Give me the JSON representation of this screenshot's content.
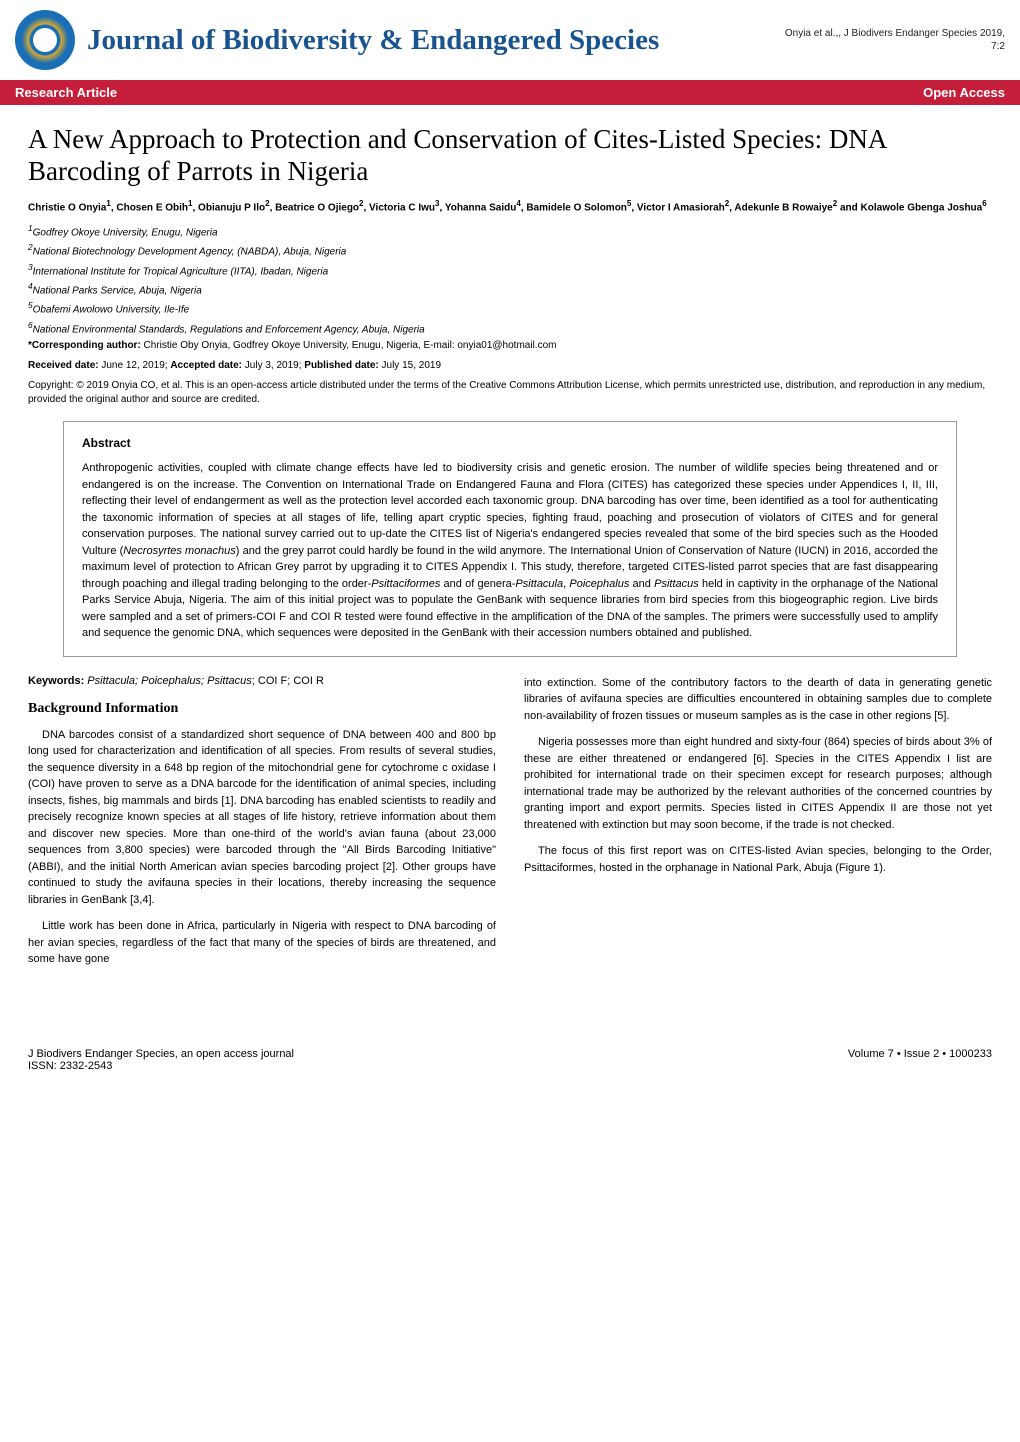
{
  "header": {
    "journal_title": "Journal of Biodiversity & Endangered Species",
    "citation_line1": "Onyia et al.,, J Biodivers Endanger Species 2019,",
    "citation_line2": "7:2"
  },
  "redbar": {
    "left": "Research Article",
    "right": "Open Access"
  },
  "article": {
    "title": "A New Approach to Protection and Conservation of Cites-Listed Species: DNA Barcoding of Parrots in Nigeria",
    "authors_html": "Christie O Onyia<sup>1</sup>, Chosen E Obih<sup>1</sup>, Obianuju P Ilo<sup>2</sup>, Beatrice O Ojiego<sup>2</sup>, Victoria C Iwu<sup>3</sup>, Yohanna Saidu<sup>4</sup>, Bamidele O Solomon<sup>5</sup>, Victor I Amasiorah<sup>2</sup>, Adekunle B Rowaiye<sup>2</sup> and Kolawole Gbenga Joshua<sup>6</sup>",
    "affiliations": [
      "1Godfrey Okoye University, Enugu, Nigeria",
      "2National Biotechnology Development Agency, (NABDA), Abuja, Nigeria",
      "3International Institute for Tropical Agriculture (IITA), Ibadan, Nigeria",
      "4National Parks Service, Abuja, Nigeria",
      "5Obafemi Awolowo University, Ile-Ife",
      "6National Environmental Standards, Regulations and Enforcement Agency, Abuja, Nigeria"
    ],
    "corresponding_label": "*Corresponding author:",
    "corresponding_text": " Christie Oby Onyia, Godfrey Okoye University, Enugu, Nigeria, E-mail: onyia01@hotmail.com",
    "dates_label_received": "Received date:",
    "dates_received": " June 12, 2019; ",
    "dates_label_accepted": "Accepted date:",
    "dates_accepted": " July 3, 2019; ",
    "dates_label_published": "Published date:",
    "dates_published": " July 15, 2019",
    "copyright_label": "Copyright:",
    "copyright_text": " © 2019 Onyia CO, et al. This is an open-access article distributed under the terms of the Creative Commons Attribution License, which permits unrestricted use, distribution, and reproduction in any medium, provided the original author and source are credited."
  },
  "abstract": {
    "heading": "Abstract",
    "text": "Anthropogenic activities, coupled with climate change effects have led to biodiversity crisis and genetic erosion. The number of wildlife species being threatened and or endangered is on the increase. The Convention on International Trade on Endangered Fauna and Flora (CITES) has categorized these species under Appendices I, II, III, reflecting their level of endangerment as well as the protection level accorded each taxonomic group. DNA barcoding has over time, been identified as a tool for authenticating the taxonomic information of species at all stages of life, telling apart cryptic species, fighting fraud, poaching and prosecution of violators of CITES and for general conservation purposes. The national survey carried out to up-date the CITES list of Nigeria's endangered species revealed that some of the bird species such as the Hooded Vulture (Necrosyrtes monachus) and the grey parrot could hardly be found in the wild anymore. The International Union of Conservation of Nature (IUCN) in 2016, accorded the maximum level of protection to African Grey parrot by upgrading it to CITES Appendix I. This study, therefore, targeted CITES-listed parrot species that are fast disappearing through poaching and illegal trading belonging to the order-Psittaciformes and of genera-Psittacula, Poicephalus and Psittacus held in captivity in the orphanage of the National Parks Service Abuja, Nigeria. The aim of this initial project was to populate the GenBank with sequence libraries from bird species from this biogeographic region. Live birds were sampled and a set of primers-COI F and COI R tested were found effective in the amplification of the DNA of the samples. The primers were successfully used to amplify and sequence the genomic DNA, which sequences were deposited in the GenBank with their accession numbers obtained and published."
  },
  "keywords": {
    "label": "Keywords:",
    "italic": " Psittacula; Poicephalus; Psittacus",
    "rest": "; COI F; COI R"
  },
  "sections": {
    "bg_heading": "Background Information",
    "bg_p1": "DNA barcodes consist of a standardized short sequence of DNA between 400 and 800 bp long used for characterization and identification of all species. From results of several studies, the sequence diversity in a 648 bp region of the mitochondrial gene for cytochrome c oxidase I (COI) have proven to serve as a DNA barcode for the identification of animal species, including insects, fishes, big mammals and birds [1]. DNA barcoding has enabled scientists to readily and precisely recognize known species at all stages of life history, retrieve information about them and discover new species. More than one-third of the world's avian fauna (about 23,000 sequences from 3,800 species) were barcoded through the \"All Birds Barcoding Initiative\" (ABBI), and the initial North American avian species barcoding project [2]. Other groups have continued to study the avifauna species in their locations, thereby increasing the sequence libraries in GenBank [3,4].",
    "bg_p2": "Little work has been done in Africa, particularly in Nigeria with respect to DNA barcoding of her avian species, regardless of the fact that many of the species of birds are threatened, and some have gone",
    "bg_p3": "into extinction. Some of the contributory factors to the dearth of data in generating genetic libraries of avifauna species are difficulties encountered in obtaining samples due to complete non-availability of frozen tissues or museum samples as is the case in other regions [5].",
    "bg_p4": "Nigeria possesses more than eight hundred and sixty-four (864) species of birds about 3% of these are either threatened or endangered [6]. Species in the CITES Appendix I list are prohibited for international trade on their specimen except for research purposes; although international trade may be authorized by the relevant authorities of the concerned countries by granting import and export permits. Species listed in CITES Appendix II are those not yet threatened with extinction but may soon become, if the trade is not checked.",
    "bg_p5": "The focus of this first report was on CITES-listed Avian species, belonging to the Order, Psittaciformes, hosted in the orphanage in National Park, Abuja (Figure 1)."
  },
  "footer": {
    "left_line1": "J Biodivers Endanger Species, an open access journal",
    "left_line2": "ISSN: 2332-2543",
    "right": "Volume 7 • Issue 2 • 1000233"
  },
  "colors": {
    "journal_blue": "#1a5490",
    "red_bar": "#c41e3a",
    "text": "#000000",
    "border": "#999999"
  }
}
